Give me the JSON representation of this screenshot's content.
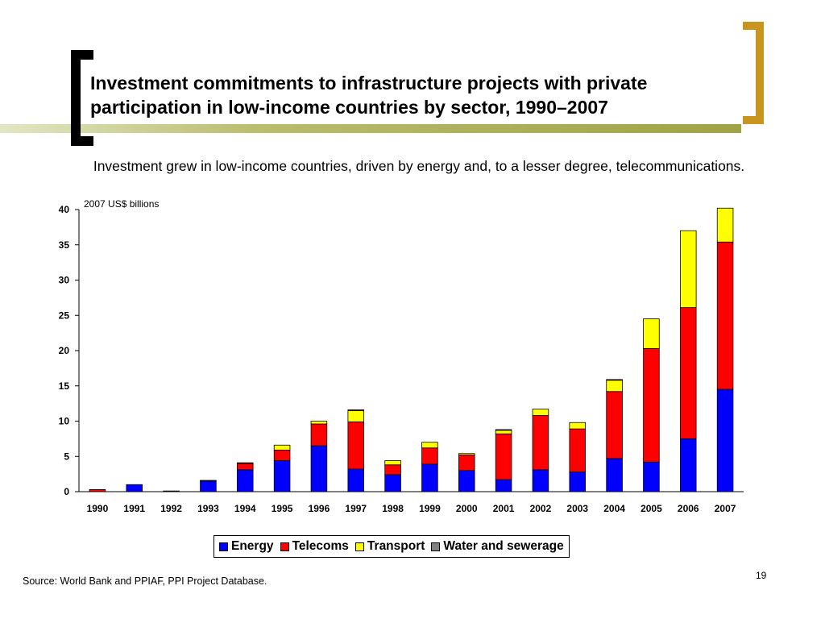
{
  "slide": {
    "title": "Investment commitments to infrastructure projects with private participation in low-income countries by sector, 1990–2007",
    "subtitle": "Investment grew in low-income countries, driven by energy and, to a lesser degree, telecommunications.",
    "source": "Source: World Bank and PPIAF, PPI Project Database.",
    "page_number": "19"
  },
  "chart_data": {
    "type": "bar",
    "stacked": true,
    "unit_label": "2007 US$ billions",
    "categories": [
      "1990",
      "1991",
      "1992",
      "1993",
      "1994",
      "1995",
      "1996",
      "1997",
      "1998",
      "1999",
      "2000",
      "2001",
      "2002",
      "2003",
      "2004",
      "2005",
      "2006",
      "2007"
    ],
    "series": [
      {
        "name": "Energy",
        "color": "#0000ff",
        "values": [
          0,
          1.0,
          0,
          1.5,
          3.1,
          4.4,
          6.5,
          3.2,
          2.4,
          3.9,
          3.0,
          1.7,
          3.1,
          2.8,
          4.7,
          4.2,
          7.5,
          14.5
        ]
      },
      {
        "name": "Telecoms",
        "color": "#ff0000",
        "values": [
          0.3,
          0,
          0,
          0,
          0.9,
          1.5,
          3.1,
          6.7,
          1.4,
          2.3,
          2.2,
          6.5,
          7.7,
          6.1,
          9.5,
          16.1,
          18.6,
          20.9
        ]
      },
      {
        "name": "Transport",
        "color": "#ffff00",
        "values": [
          0,
          0,
          0,
          0,
          0.1,
          0.7,
          0.4,
          1.6,
          0.6,
          0.8,
          0.2,
          0.5,
          0.9,
          0.9,
          1.6,
          4.2,
          10.9,
          4.8
        ]
      },
      {
        "name": "Water and sewerage",
        "color": "#808080",
        "values": [
          0,
          0,
          0.1,
          0.1,
          0,
          0,
          0,
          0.1,
          0,
          0,
          0,
          0.1,
          0,
          0,
          0.1,
          0,
          0,
          0
        ]
      }
    ],
    "ylim": [
      0,
      40
    ],
    "yticks": [
      0,
      5,
      10,
      15,
      20,
      25,
      30,
      35,
      40
    ],
    "legend_position": "bottom"
  }
}
